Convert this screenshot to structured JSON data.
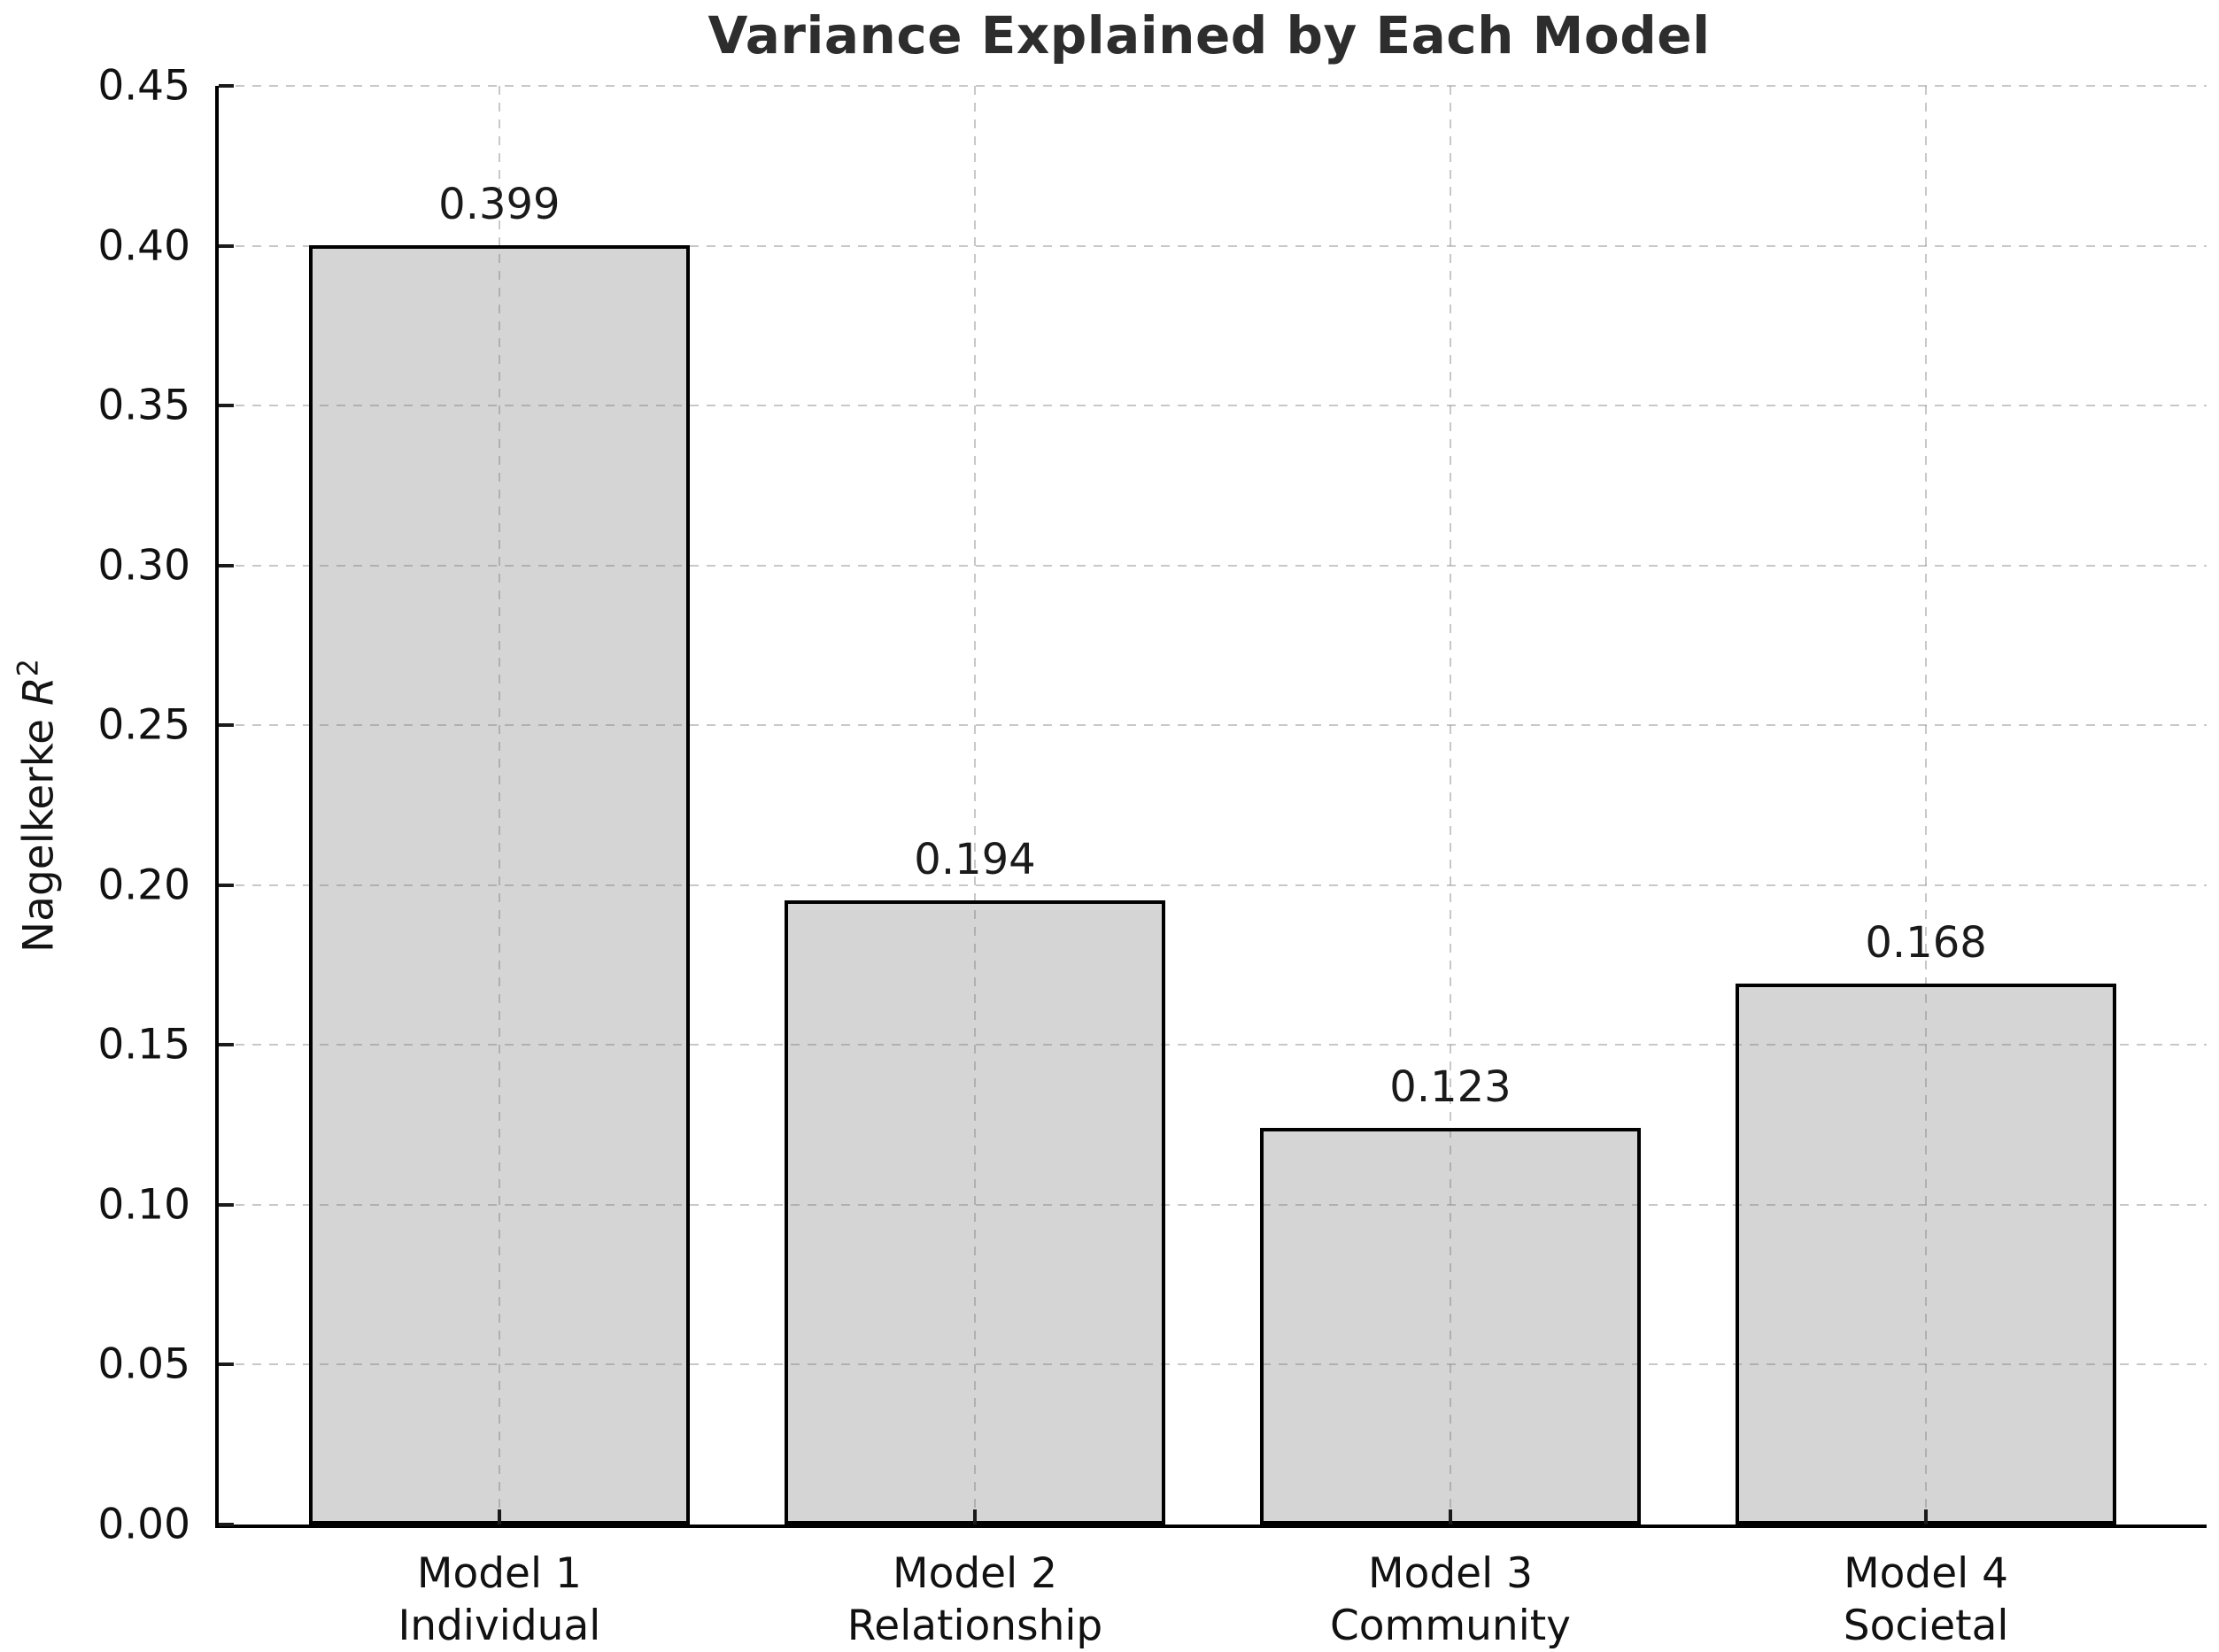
{
  "chart_data": {
    "type": "bar",
    "title": "Variance Explained by Each Model",
    "ylabel": {
      "prefix": "Nagelkerke ",
      "variable": "R",
      "exponent": "2"
    },
    "categories": [
      {
        "line1": "Model 1",
        "line2": "Individual"
      },
      {
        "line1": "Model 2",
        "line2": "Relationship"
      },
      {
        "line1": "Model 3",
        "line2": "Community"
      },
      {
        "line1": "Model 4",
        "line2": "Societal"
      }
    ],
    "values": [
      0.399,
      0.194,
      0.123,
      0.168
    ],
    "value_labels": [
      "0.399",
      "0.194",
      "0.123",
      "0.168"
    ],
    "ylim": [
      0,
      0.45
    ],
    "ytick_step": 0.05,
    "yticks": [
      {
        "value": 0.0,
        "label": "0.00"
      },
      {
        "value": 0.05,
        "label": "0.05"
      },
      {
        "value": 0.1,
        "label": "0.10"
      },
      {
        "value": 0.15,
        "label": "0.15"
      },
      {
        "value": 0.2,
        "label": "0.20"
      },
      {
        "value": 0.25,
        "label": "0.25"
      },
      {
        "value": 0.3,
        "label": "0.30"
      },
      {
        "value": 0.35,
        "label": "0.35"
      },
      {
        "value": 0.4,
        "label": "0.40"
      },
      {
        "value": 0.45,
        "label": "0.45"
      }
    ],
    "xlim": [
      -0.59,
      3.59
    ],
    "bar_width_units": 0.8,
    "grid": {
      "visible": true,
      "style": "dashed",
      "horizontal": true,
      "vertical": true
    },
    "legend_position": "none",
    "colors": {
      "background": "#ffffff",
      "bar_fill": "#d5d5d5",
      "bar_edge": "#000000",
      "grid": "rgba(125,125,125,0.42)",
      "spine": "#000000",
      "title_text": "#2d2d2d",
      "tick_text": "#111111",
      "value_text": "#1a1a1a"
    }
  }
}
